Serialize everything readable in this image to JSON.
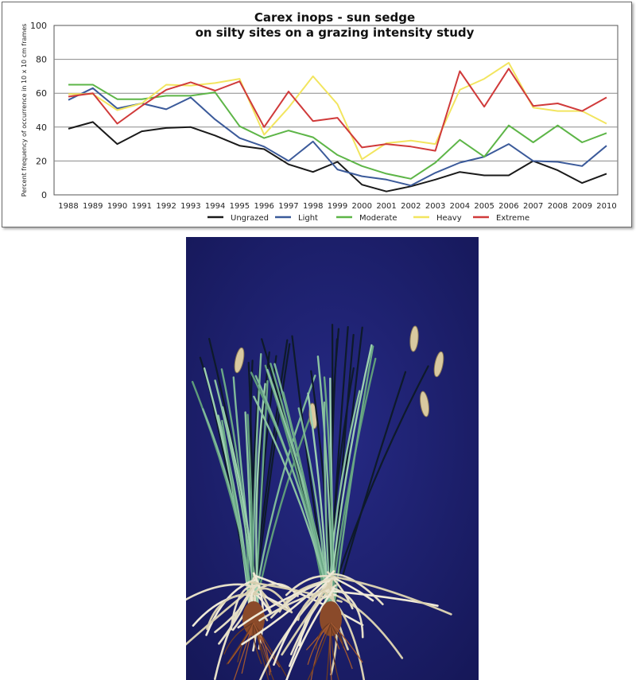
{
  "chart_data": {
    "type": "line",
    "title": [
      "Carex inops  -  sun sedge",
      "on silty sites on a grazing intensity study"
    ],
    "ylabel": "Percent frequency of occurrence in 10 x 10 cm frames",
    "xlabel": "",
    "ylim": [
      0,
      100
    ],
    "yticks": [
      0,
      20,
      40,
      60,
      80,
      100
    ],
    "x": [
      "1988",
      "1989",
      "1990",
      "1991",
      "1992",
      "1993",
      "1994",
      "1995",
      "1996",
      "1997",
      "1998",
      "1999",
      "2000",
      "2001",
      "2002",
      "2003",
      "2004",
      "2005",
      "2006",
      "2007",
      "2008",
      "2009",
      "2010"
    ],
    "grid": "horizontal",
    "legend_position": "bottom",
    "series": [
      {
        "name": "Ungrazed",
        "color": "#1a1a1a",
        "values": [
          39,
          43,
          30,
          37.5,
          39.5,
          40,
          35,
          29,
          27,
          18,
          13.5,
          19.5,
          6,
          2,
          5,
          9,
          13.5,
          11.5,
          11.5,
          20,
          14.5,
          7,
          12.5
        ]
      },
      {
        "name": "Light",
        "color": "#3b5a9a",
        "values": [
          56,
          63,
          51,
          54,
          50.5,
          57.5,
          44.5,
          33.5,
          28.5,
          20,
          31.5,
          15,
          11,
          9,
          5.5,
          13,
          19,
          22.5,
          30,
          20,
          19.5,
          17,
          29
        ]
      },
      {
        "name": "Moderate",
        "color": "#5db547",
        "values": [
          65,
          65,
          56.5,
          56.5,
          58.5,
          58.5,
          60.5,
          40.5,
          33.5,
          38,
          34,
          23.5,
          17,
          12.5,
          9.5,
          19,
          32.5,
          22.5,
          41,
          31,
          41,
          31,
          36.5
        ]
      },
      {
        "name": "Heavy",
        "color": "#f2e55f",
        "values": [
          59.5,
          59.5,
          50,
          54,
          65,
          64.5,
          66,
          68.5,
          35.5,
          51.5,
          70,
          53.5,
          21,
          30.5,
          32,
          30,
          62,
          68.5,
          78,
          51.5,
          49.5,
          49.5,
          42
        ]
      },
      {
        "name": "Extreme",
        "color": "#d03a3a",
        "values": [
          58,
          60,
          42,
          52.5,
          62,
          66.5,
          61.5,
          67,
          40,
          61,
          43.5,
          45.5,
          28,
          30,
          28.5,
          26,
          73,
          52,
          74.5,
          52.5,
          54,
          49.5,
          57.5
        ]
      }
    ]
  },
  "photo": {
    "subject": "two uprooted sun sedge (Carex inops) plants with roots on a dark blue background",
    "background_color": "#1b1f6e"
  }
}
